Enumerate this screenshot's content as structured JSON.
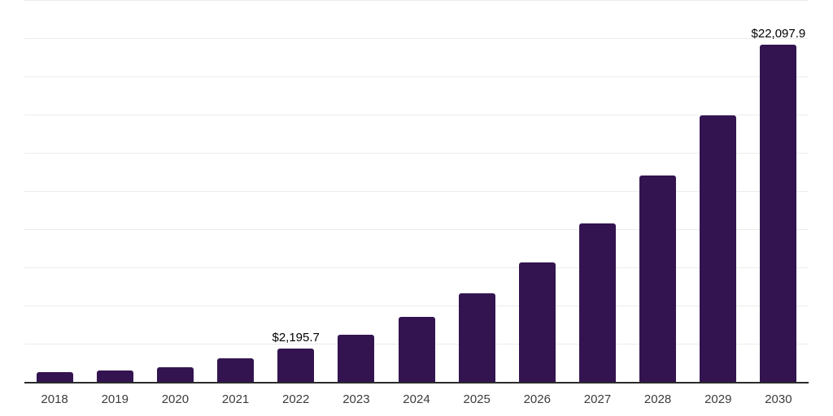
{
  "chart_data": {
    "type": "bar",
    "title": "",
    "categories": [
      "2018",
      "2019",
      "2020",
      "2021",
      "2022",
      "2023",
      "2024",
      "2025",
      "2026",
      "2027",
      "2028",
      "2029",
      "2030"
    ],
    "values": [
      630,
      740,
      950,
      1540,
      2195.7,
      3100,
      4260,
      5820,
      7820,
      10390,
      13530,
      17450,
      22097.9
    ],
    "bar_labels": [
      "",
      "",
      "",
      "",
      "$2,195.7",
      "",
      "",
      "",
      "",
      "",
      "",
      "",
      "$22,097.9"
    ],
    "xlabel": "",
    "ylabel": "",
    "ylim": [
      0,
      25000
    ],
    "gridline_step": 2500,
    "grid": "horizontal",
    "legend": "none",
    "y_axis_tick_labels_visible": false
  },
  "style": {
    "bar_color": "#331450",
    "axis_line_color": "#2b2b2b",
    "gridline_color": "#ececec",
    "tick_label_color": "#3b3b3b",
    "data_label_color": "#000000",
    "background_color": "#ffffff"
  }
}
